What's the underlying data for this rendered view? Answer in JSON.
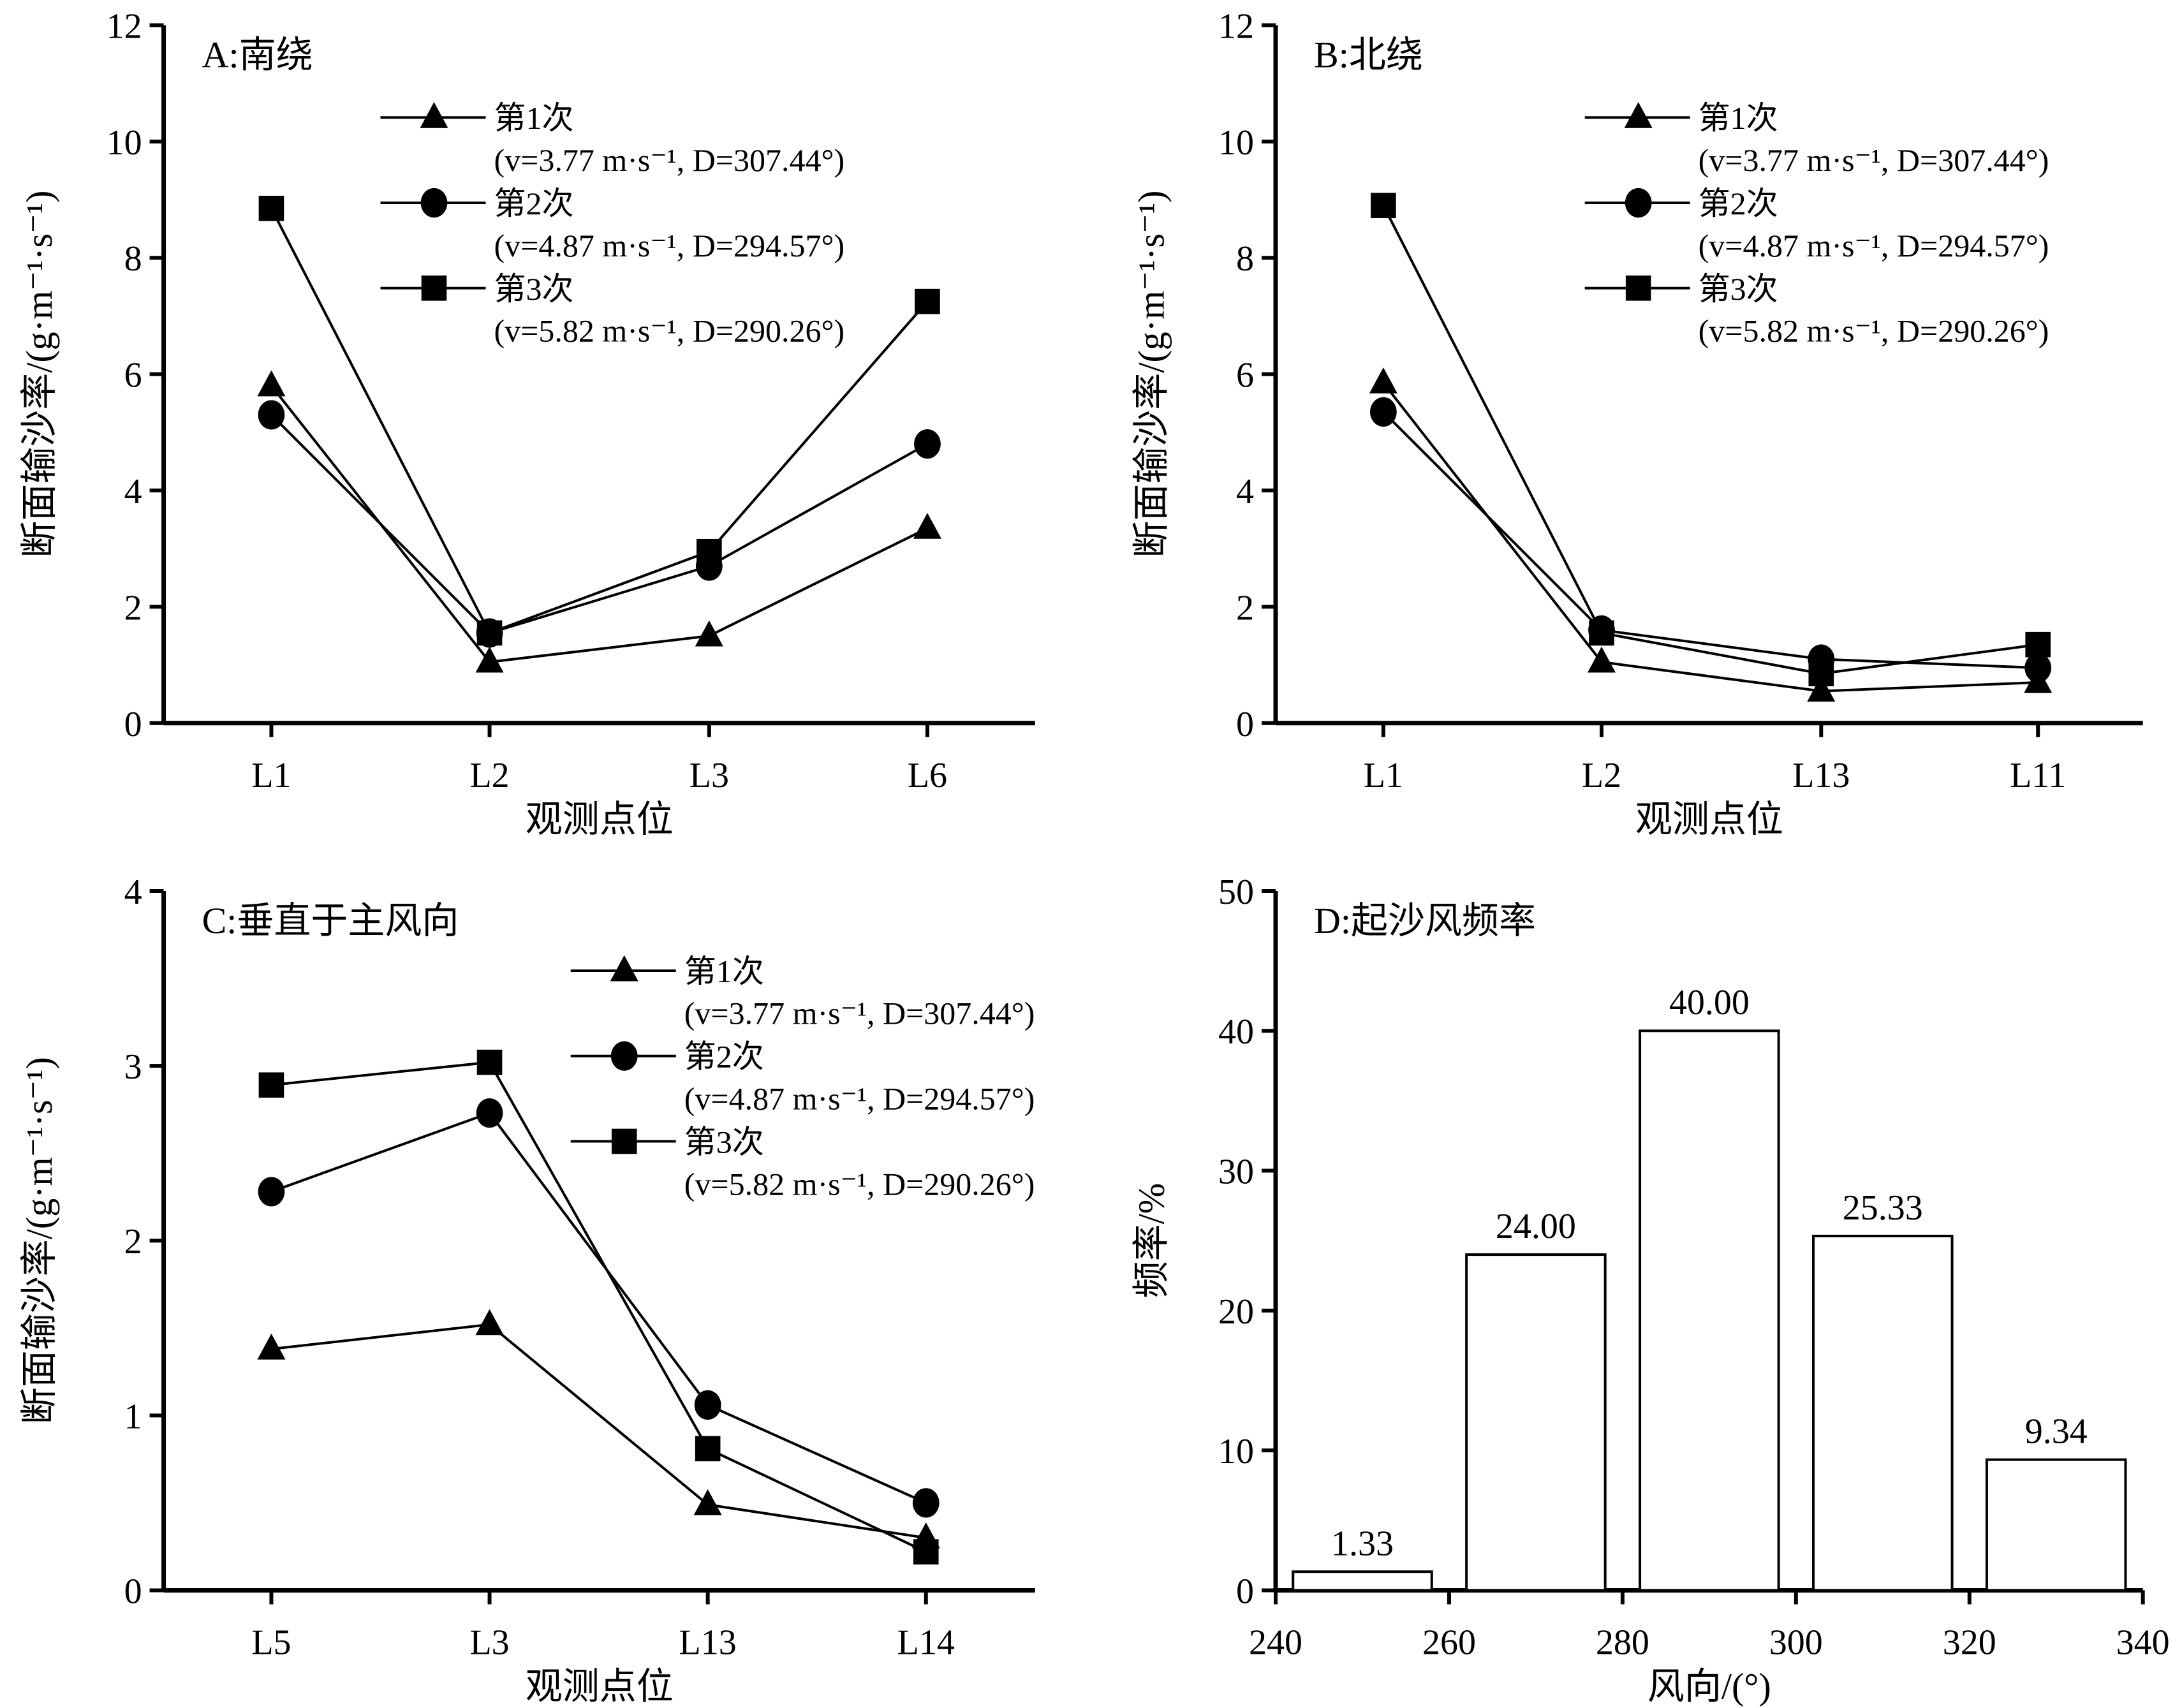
{
  "chart_data": [
    {
      "id": "A",
      "type": "line",
      "title": "A:南绕",
      "xlabel": "观测点位",
      "ylabel": "断面输沙率/(g·m⁻¹·s⁻¹)",
      "categories": [
        "L1",
        "L2",
        "L3",
        "L6"
      ],
      "ylim": [
        0,
        12
      ],
      "yticks": [
        "0",
        "2",
        "4",
        "6",
        "8",
        "10",
        "12"
      ],
      "legend_position": "top-right",
      "series": [
        {
          "name": "第1次",
          "detail": "(v=3.77 m·s⁻¹, D=307.44°)",
          "marker": "triangle",
          "values": [
            5.8,
            1.05,
            1.5,
            3.35
          ]
        },
        {
          "name": "第2次",
          "detail": "(v=4.87 m·s⁻¹, D=294.57°)",
          "marker": "circle",
          "values": [
            5.3,
            1.55,
            2.7,
            4.8
          ]
        },
        {
          "name": "第3次",
          "detail": "(v=5.82 m·s⁻¹, D=290.26°)",
          "marker": "square",
          "values": [
            8.85,
            1.55,
            2.95,
            7.25
          ]
        }
      ]
    },
    {
      "id": "B",
      "type": "line",
      "title": "B:北绕",
      "xlabel": "观测点位",
      "ylabel": "断面输沙率/(g·m⁻¹·s⁻¹)",
      "categories": [
        "L1",
        "L2",
        "L13",
        "L11"
      ],
      "ylim": [
        0,
        12
      ],
      "yticks": [
        "0",
        "2",
        "4",
        "6",
        "8",
        "10",
        "12"
      ],
      "legend_position": "top-right",
      "series": [
        {
          "name": "第1次",
          "detail": "(v=3.77 m·s⁻¹, D=307.44°)",
          "marker": "triangle",
          "values": [
            5.85,
            1.05,
            0.55,
            0.7
          ]
        },
        {
          "name": "第2次",
          "detail": "(v=4.87 m·s⁻¹, D=294.57°)",
          "marker": "circle",
          "values": [
            5.35,
            1.6,
            1.1,
            0.95
          ]
        },
        {
          "name": "第3次",
          "detail": "(v=5.82 m·s⁻¹, D=290.26°)",
          "marker": "square",
          "values": [
            8.9,
            1.55,
            0.85,
            1.35
          ]
        }
      ]
    },
    {
      "id": "C",
      "type": "line",
      "title": "C:垂直于主风向",
      "xlabel": "观测点位",
      "ylabel": "断面输沙率/(g·m⁻¹·s⁻¹)",
      "categories": [
        "L5",
        "L3",
        "L13",
        "L14"
      ],
      "ylim": [
        0,
        4
      ],
      "yticks": [
        "0",
        "1",
        "2",
        "3",
        "4"
      ],
      "legend_position": "top-right",
      "series": [
        {
          "name": "第1次",
          "detail": "(v=3.77 m·s⁻¹, D=307.44°)",
          "marker": "triangle",
          "values": [
            1.38,
            1.52,
            0.49,
            0.3
          ]
        },
        {
          "name": "第2次",
          "detail": "(v=4.87 m·s⁻¹, D=294.57°)",
          "marker": "circle",
          "values": [
            2.28,
            2.73,
            1.06,
            0.5
          ]
        },
        {
          "name": "第3次",
          "detail": "(v=5.82 m·s⁻¹, D=290.26°)",
          "marker": "square",
          "values": [
            2.89,
            3.02,
            0.81,
            0.22
          ]
        }
      ]
    },
    {
      "id": "D",
      "type": "bar",
      "title": "D:起沙风频率",
      "xlabel": "风向/(°)",
      "ylabel": "频率/%",
      "categories": [
        "250",
        "270",
        "290",
        "310",
        "330"
      ],
      "bar_ranges": [
        [
          242,
          258
        ],
        [
          262,
          278
        ],
        [
          282,
          298
        ],
        [
          302,
          318
        ],
        [
          322,
          338
        ]
      ],
      "values": [
        1.33,
        24.0,
        40.0,
        25.33,
        9.34
      ],
      "labels": [
        "1.33",
        "24.00",
        "40.00",
        "25.33",
        "9.34"
      ],
      "xlim": [
        240,
        340
      ],
      "xticks": [
        "240",
        "260",
        "280",
        "300",
        "320",
        "340"
      ],
      "ylim": [
        0,
        50
      ],
      "yticks": [
        "0",
        "10",
        "20",
        "30",
        "40",
        "50"
      ]
    }
  ]
}
